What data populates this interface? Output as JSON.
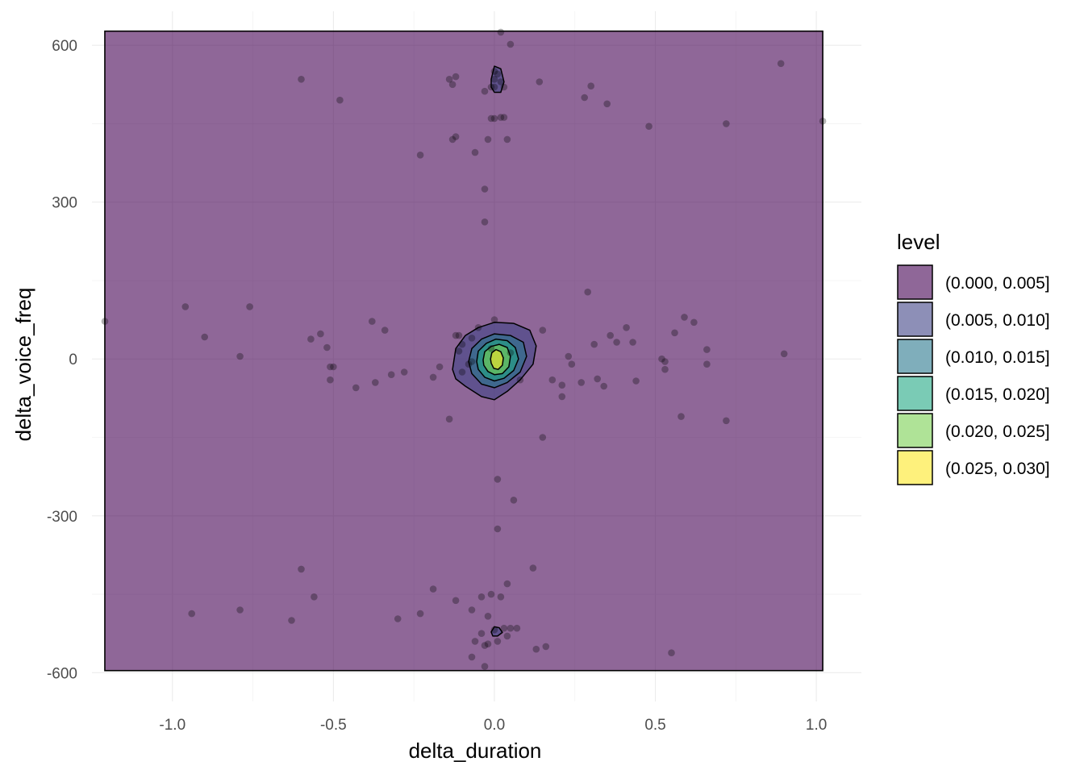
{
  "chart_data": {
    "type": "scatter",
    "xlabel": "delta_duration",
    "ylabel": "delta_voice_freq",
    "xlim": [
      -1.25,
      1.14
    ],
    "ylim": [
      -655,
      665
    ],
    "x_ticks": [
      -1.0,
      -0.5,
      0.0,
      0.5,
      1.0
    ],
    "x_tick_labels": [
      "-1.0",
      "-0.5",
      "0.0",
      "0.5",
      "1.0"
    ],
    "y_ticks": [
      -600,
      -300,
      0,
      300,
      600
    ],
    "y_tick_labels": [
      "-600",
      "-300",
      "0",
      "300",
      "600"
    ],
    "grid": true,
    "legend": {
      "title": "level",
      "position": "right",
      "entries": [
        {
          "label": "(0.000, 0.005]",
          "color": "#440154"
        },
        {
          "label": "(0.005, 0.010]",
          "color": "#414487"
        },
        {
          "label": "(0.010, 0.015]",
          "color": "#2A788E"
        },
        {
          "label": "(0.015, 0.020]",
          "color": "#22A884"
        },
        {
          "label": "(0.020, 0.025]",
          "color": "#7AD151"
        },
        {
          "label": "(0.025, 0.030]",
          "color": "#FDE725"
        }
      ]
    },
    "fill_opacity": 0.6,
    "background_region": {
      "x": [
        -1.21,
        1.02
      ],
      "y": [
        -596,
        627
      ]
    },
    "contours": [
      {
        "level": 1,
        "points": [
          [
            -0.13,
            -20
          ],
          [
            -0.12,
            20
          ],
          [
            -0.09,
            45
          ],
          [
            -0.05,
            60
          ],
          [
            0.0,
            70
          ],
          [
            0.06,
            68
          ],
          [
            0.11,
            55
          ],
          [
            0.13,
            25
          ],
          [
            0.12,
            -10
          ],
          [
            0.08,
            -40
          ],
          [
            0.04,
            -62
          ],
          [
            0.0,
            -78
          ],
          [
            -0.04,
            -72
          ],
          [
            -0.09,
            -52
          ],
          [
            -0.12,
            -38
          ]
        ]
      },
      {
        "level": 1,
        "points": [
          [
            -0.01,
            535
          ],
          [
            0.0,
            560
          ],
          [
            0.02,
            555
          ],
          [
            0.03,
            530
          ],
          [
            0.02,
            510
          ],
          [
            0.0,
            510
          ],
          [
            -0.01,
            520
          ]
        ]
      },
      {
        "level": 1,
        "points": [
          [
            -0.01,
            -522
          ],
          [
            0.0,
            -512
          ],
          [
            0.015,
            -514
          ],
          [
            0.025,
            -523
          ],
          [
            0.01,
            -530
          ],
          [
            -0.005,
            -530
          ]
        ]
      },
      {
        "level": 2,
        "points": [
          [
            -0.08,
            -5
          ],
          [
            -0.07,
            20
          ],
          [
            -0.04,
            38
          ],
          [
            0.0,
            48
          ],
          [
            0.05,
            45
          ],
          [
            0.09,
            32
          ],
          [
            0.1,
            5
          ],
          [
            0.08,
            -25
          ],
          [
            0.04,
            -45
          ],
          [
            0.0,
            -55
          ],
          [
            -0.04,
            -48
          ],
          [
            -0.07,
            -28
          ]
        ]
      },
      {
        "level": 3,
        "points": [
          [
            -0.055,
            -5
          ],
          [
            -0.05,
            15
          ],
          [
            -0.025,
            30
          ],
          [
            0.005,
            38
          ],
          [
            0.04,
            35
          ],
          [
            0.065,
            22
          ],
          [
            0.075,
            0
          ],
          [
            0.06,
            -22
          ],
          [
            0.03,
            -37
          ],
          [
            0.0,
            -42
          ],
          [
            -0.03,
            -35
          ],
          [
            -0.05,
            -20
          ]
        ]
      },
      {
        "level": 4,
        "points": [
          [
            -0.035,
            -2
          ],
          [
            -0.03,
            14
          ],
          [
            -0.01,
            24
          ],
          [
            0.015,
            28
          ],
          [
            0.04,
            22
          ],
          [
            0.05,
            5
          ],
          [
            0.045,
            -15
          ],
          [
            0.025,
            -28
          ],
          [
            0.0,
            -30
          ],
          [
            -0.02,
            -24
          ],
          [
            -0.033,
            -12
          ]
        ]
      },
      {
        "level": 5,
        "points": [
          [
            -0.012,
            0
          ],
          [
            -0.008,
            12
          ],
          [
            0.005,
            18
          ],
          [
            0.02,
            14
          ],
          [
            0.028,
            2
          ],
          [
            0.025,
            -12
          ],
          [
            0.012,
            -20
          ],
          [
            -0.002,
            -18
          ],
          [
            -0.01,
            -8
          ]
        ]
      }
    ],
    "points": [
      [
        -1.21,
        72
      ],
      [
        -0.96,
        100
      ],
      [
        -0.94,
        -487
      ],
      [
        -0.9,
        42
      ],
      [
        -0.79,
        5
      ],
      [
        -0.79,
        -480
      ],
      [
        -0.76,
        100
      ],
      [
        -0.63,
        -500
      ],
      [
        -0.6,
        535
      ],
      [
        -0.6,
        -402
      ],
      [
        -0.57,
        38
      ],
      [
        -0.56,
        -455
      ],
      [
        -0.54,
        48
      ],
      [
        -0.52,
        22
      ],
      [
        -0.51,
        -15
      ],
      [
        -0.51,
        -40
      ],
      [
        -0.48,
        495
      ],
      [
        -0.43,
        -55
      ],
      [
        -0.38,
        72
      ],
      [
        -0.37,
        -45
      ],
      [
        -0.34,
        55
      ],
      [
        -0.32,
        -30
      ],
      [
        -0.3,
        -497
      ],
      [
        -0.28,
        -25
      ],
      [
        -0.23,
        390
      ],
      [
        -0.23,
        -487
      ],
      [
        -0.19,
        -440
      ],
      [
        -0.19,
        -35
      ],
      [
        -0.17,
        -15
      ],
      [
        -0.14,
        -115
      ],
      [
        -0.14,
        535
      ],
      [
        -0.13,
        525
      ],
      [
        -0.13,
        420
      ],
      [
        -0.12,
        425
      ],
      [
        -0.12,
        540
      ],
      [
        -0.12,
        -462
      ],
      [
        -0.11,
        15
      ],
      [
        -0.11,
        45
      ],
      [
        -0.1,
        -25
      ],
      [
        -0.1,
        28
      ],
      [
        -0.08,
        -10
      ],
      [
        -0.07,
        40
      ],
      [
        -0.07,
        -5
      ],
      [
        -0.07,
        -480
      ],
      [
        -0.07,
        -570
      ],
      [
        -0.06,
        395
      ],
      [
        -0.06,
        -540
      ],
      [
        -0.04,
        -525
      ],
      [
        -0.04,
        -455
      ],
      [
        -0.03,
        512
      ],
      [
        -0.03,
        325
      ],
      [
        -0.03,
        262
      ],
      [
        -0.03,
        -548
      ],
      [
        -0.03,
        -588
      ],
      [
        -0.02,
        420
      ],
      [
        -0.02,
        -492
      ],
      [
        -0.02,
        -545
      ],
      [
        -0.01,
        460
      ],
      [
        -0.01,
        520
      ],
      [
        -0.01,
        20
      ],
      [
        -0.01,
        -450
      ],
      [
        0.0,
        535
      ],
      [
        0.0,
        550
      ],
      [
        0.0,
        460
      ],
      [
        0.0,
        520
      ],
      [
        0.0,
        75
      ],
      [
        0.0,
        -518
      ],
      [
        0.01,
        -230
      ],
      [
        0.01,
        -325
      ],
      [
        0.01,
        -540
      ],
      [
        0.01,
        545
      ],
      [
        0.02,
        625
      ],
      [
        0.02,
        462
      ],
      [
        0.02,
        530
      ],
      [
        0.02,
        -455
      ],
      [
        0.03,
        520
      ],
      [
        0.03,
        462
      ],
      [
        0.03,
        -515
      ],
      [
        0.04,
        420
      ],
      [
        0.04,
        -430
      ],
      [
        0.04,
        -530
      ],
      [
        0.05,
        -515
      ],
      [
        0.05,
        602
      ],
      [
        0.06,
        -270
      ],
      [
        0.07,
        -515
      ],
      [
        0.12,
        -400
      ],
      [
        0.13,
        -555
      ],
      [
        0.14,
        530
      ],
      [
        0.15,
        -150
      ],
      [
        0.16,
        -550
      ],
      [
        0.18,
        -40
      ],
      [
        0.21,
        -72
      ],
      [
        0.23,
        5
      ],
      [
        0.24,
        -10
      ],
      [
        0.27,
        -45
      ],
      [
        0.28,
        500
      ],
      [
        0.29,
        128
      ],
      [
        0.3,
        522
      ],
      [
        0.31,
        28
      ],
      [
        0.32,
        -38
      ],
      [
        0.34,
        -52
      ],
      [
        0.35,
        488
      ],
      [
        0.36,
        45
      ],
      [
        0.38,
        32
      ],
      [
        0.41,
        60
      ],
      [
        0.43,
        32
      ],
      [
        0.44,
        -42
      ],
      [
        0.48,
        445
      ],
      [
        0.52,
        0
      ],
      [
        0.53,
        -20
      ],
      [
        0.53,
        -5
      ],
      [
        0.55,
        -562
      ],
      [
        0.56,
        50
      ],
      [
        0.58,
        -110
      ],
      [
        0.59,
        80
      ],
      [
        0.62,
        70
      ],
      [
        0.66,
        18
      ],
      [
        0.66,
        -10
      ],
      [
        0.72,
        -118
      ],
      [
        0.72,
        450
      ],
      [
        0.89,
        565
      ],
      [
        0.9,
        10
      ],
      [
        1.02,
        455
      ],
      [
        0.15,
        55
      ],
      [
        0.21,
        -50
      ],
      [
        -0.12,
        45
      ],
      [
        -0.5,
        -15
      ],
      [
        0.05,
        12
      ],
      [
        -0.05,
        60
      ],
      [
        0.08,
        -40
      ]
    ]
  }
}
